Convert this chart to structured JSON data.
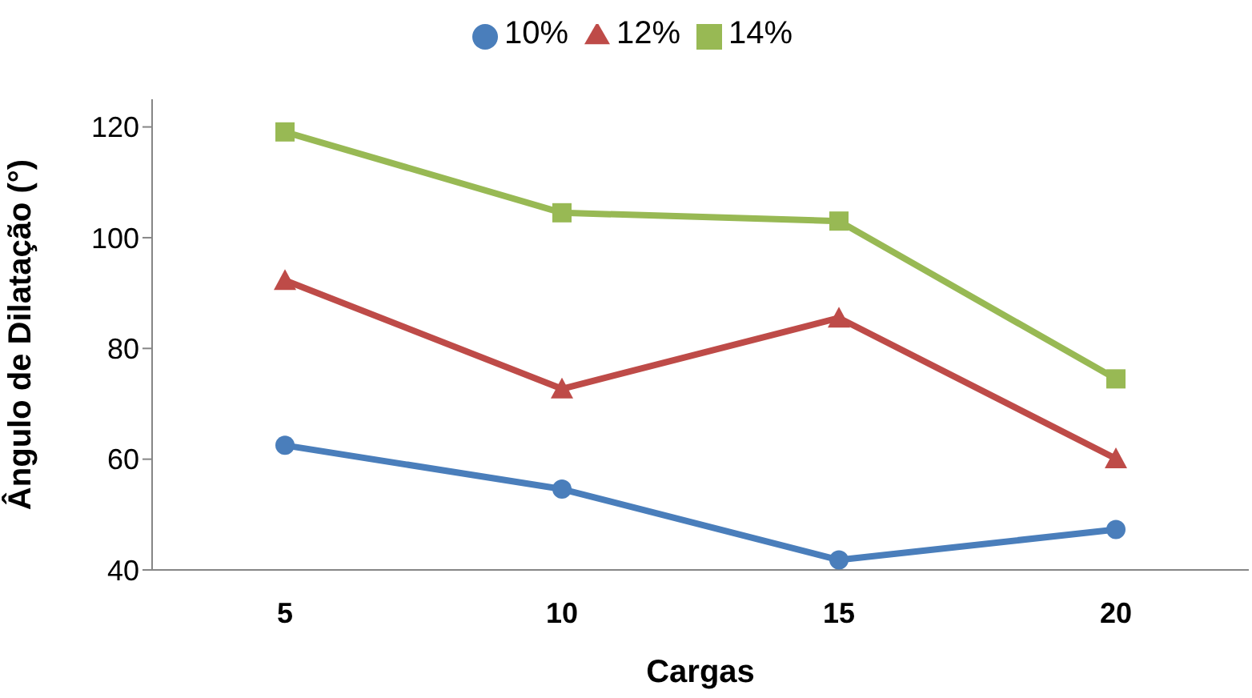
{
  "chart_data": {
    "type": "line",
    "xlabel": "Cargas",
    "ylabel": "Ângulo de Dilatação (°)",
    "categories": [
      "5",
      "10",
      "15",
      "20"
    ],
    "ylim": [
      40,
      125
    ],
    "yticks": [
      40,
      60,
      80,
      100,
      120
    ],
    "legend": "top",
    "series": [
      {
        "name": "10%",
        "color": "#4a7ebb",
        "marker": "circle",
        "values": [
          62.5,
          54.6,
          41.8,
          47.3
        ]
      },
      {
        "name": "12%",
        "color": "#be4b48",
        "marker": "triangle",
        "values": [
          92.3,
          72.7,
          85.5,
          60.1
        ]
      },
      {
        "name": "14%",
        "color": "#98b954",
        "marker": "square",
        "values": [
          119.1,
          104.5,
          103,
          74.5
        ]
      }
    ]
  }
}
